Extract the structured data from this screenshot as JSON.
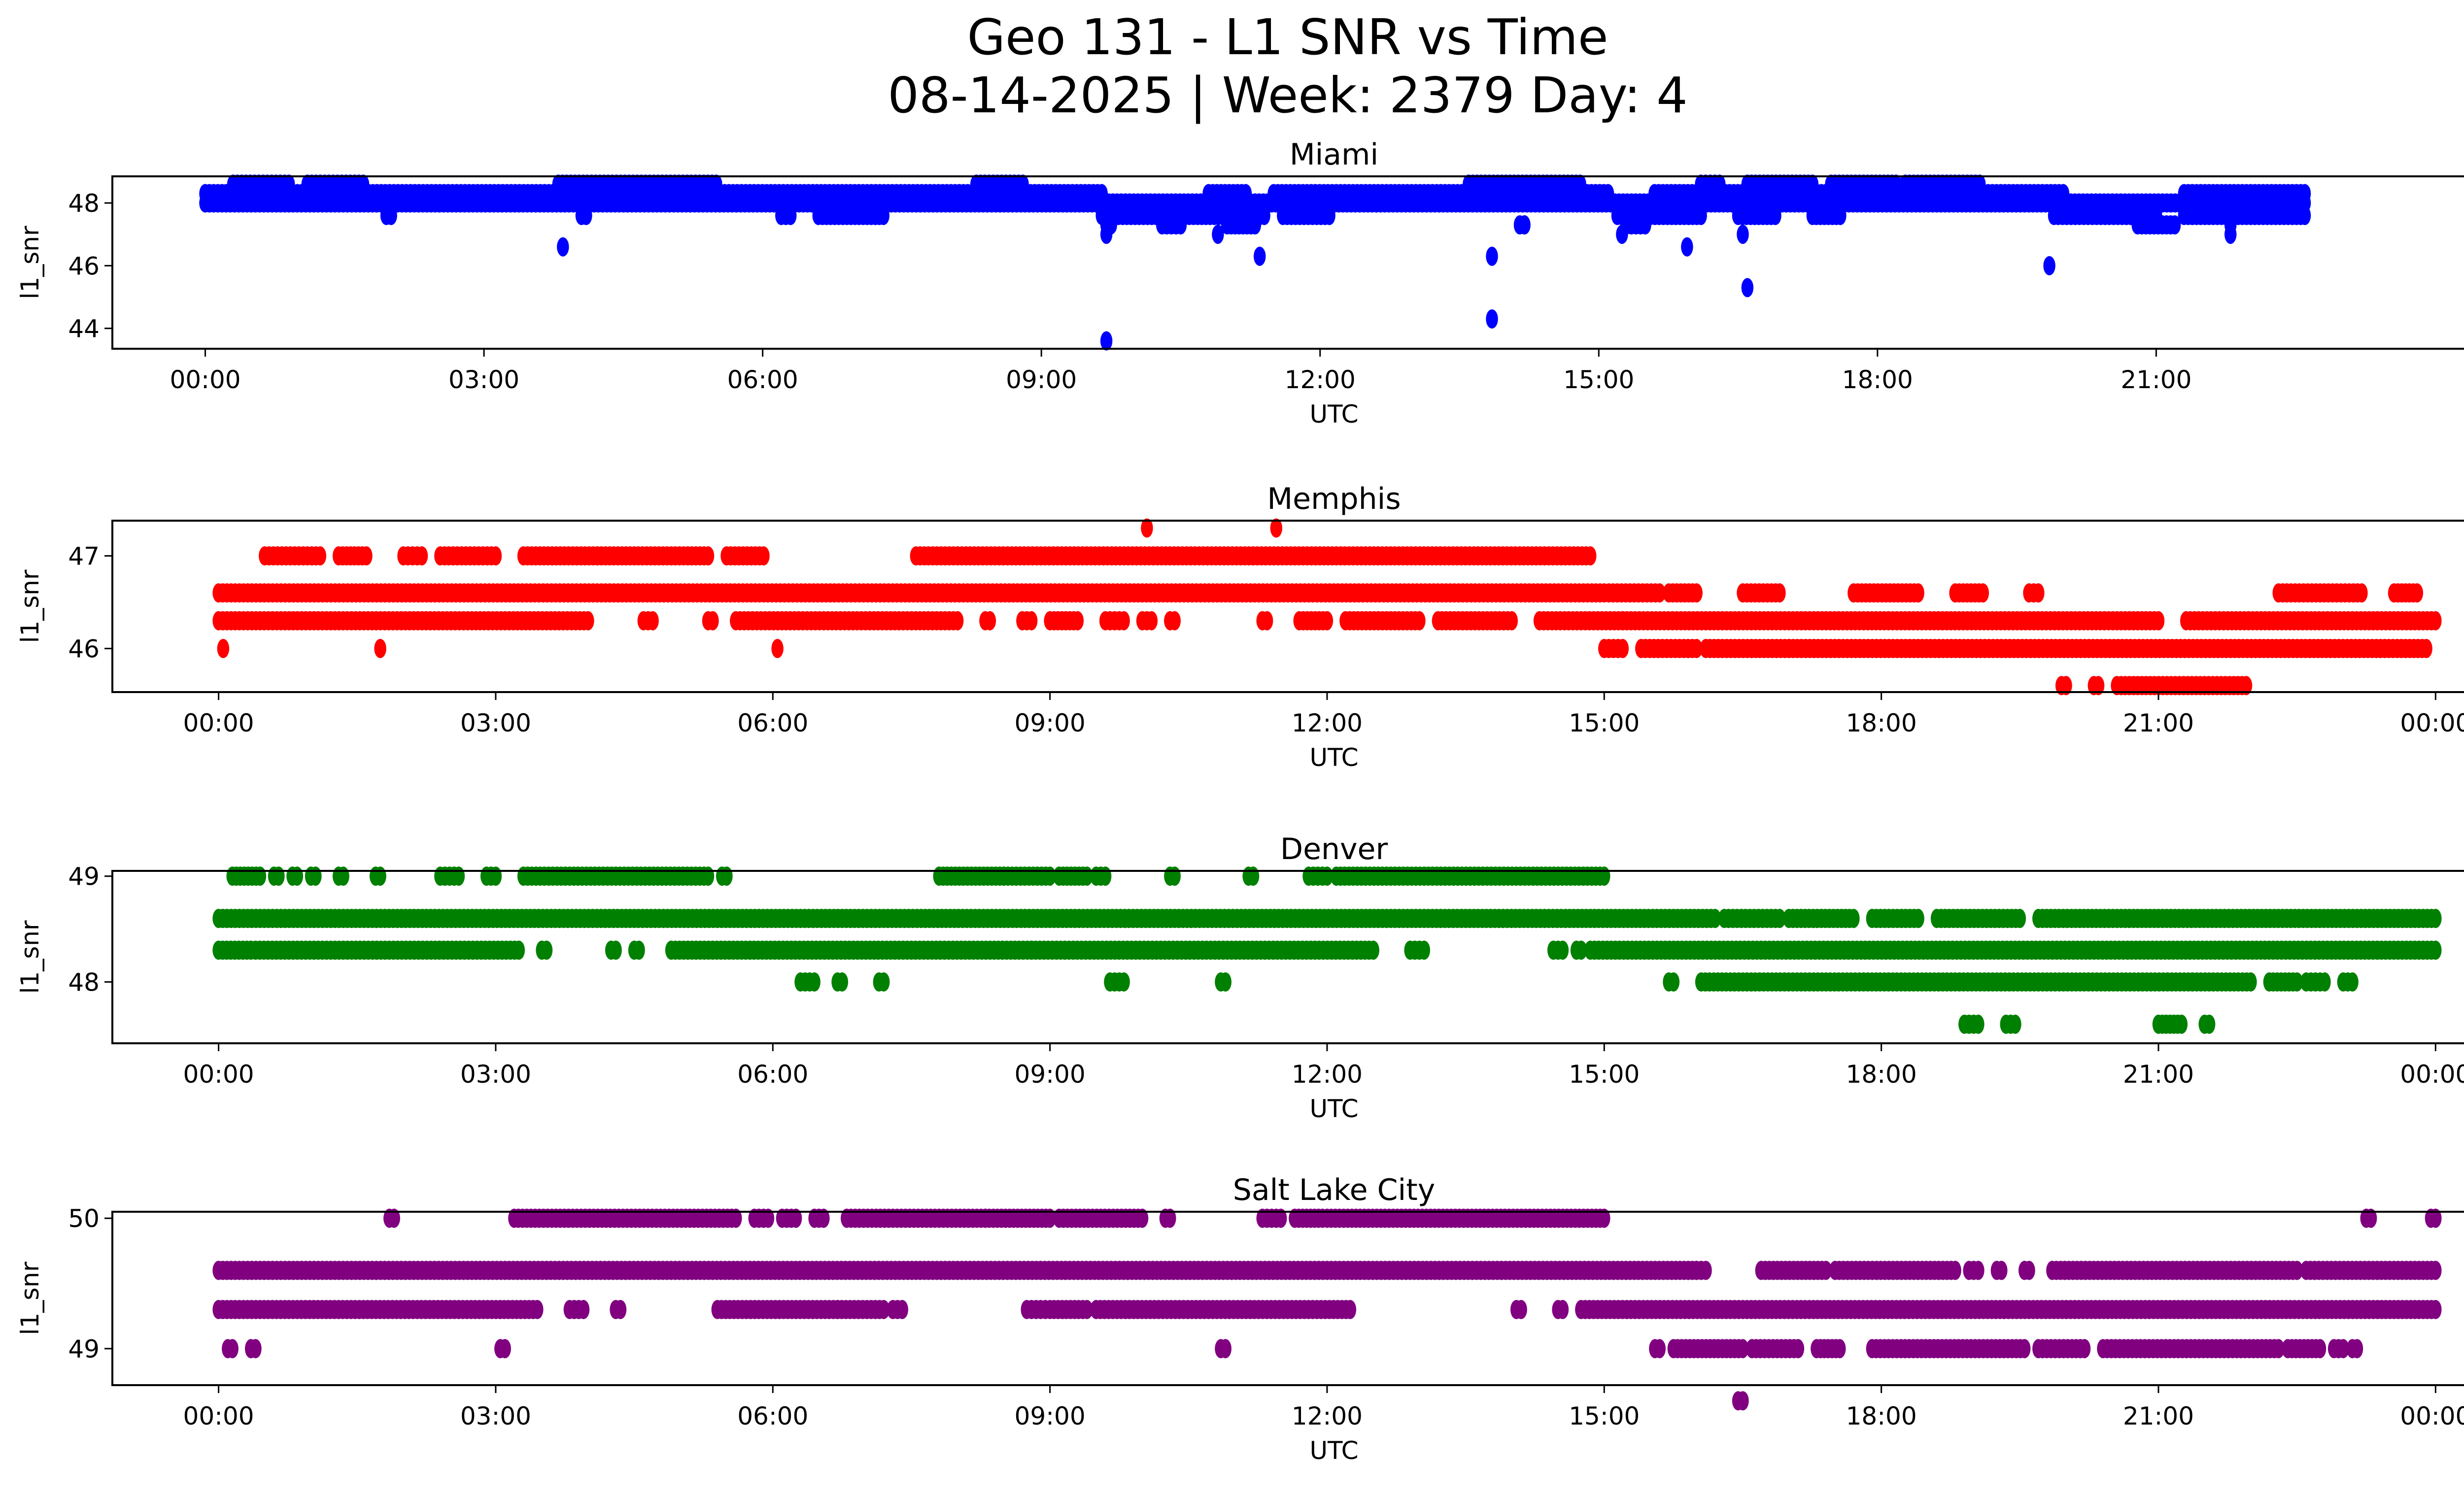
{
  "chart_data": {
    "type": "scatter",
    "title": "Geo 131 - L1 SNR vs Time",
    "subtitle": "08-14-2025 | Week: 2379 Day: 4",
    "panels": [
      {
        "name": "Miami",
        "color": "#0000ff",
        "xlabel": "UTC",
        "ylabel": "l1_snr",
        "xlim_hours": [
          -1.0,
          25.3
        ],
        "ylim": [
          43.35,
          48.85
        ],
        "yticks": [
          44,
          46,
          48
        ],
        "xticks_hours": [
          0,
          3,
          6,
          9,
          12,
          15,
          18,
          21
        ],
        "xtick_labels": [
          "00:00",
          "03:00",
          "06:00",
          "09:00",
          "12:00",
          "15:00",
          "18:00",
          "21:00"
        ],
        "runs": [
          {
            "y": 48.3,
            "segments": [
              [
                0.0,
                9.65
              ],
              [
                10.8,
                11.2
              ],
              [
                11.5,
                15.1
              ],
              [
                15.6,
                20.0
              ],
              [
                21.3,
                22.6
              ]
            ]
          },
          {
            "y": 48.0,
            "segments": [
              [
                0.0,
                22.6
              ]
            ]
          },
          {
            "y": 48.6,
            "segments": [
              [
                0.3,
                0.9
              ],
              [
                1.1,
                1.7
              ],
              [
                3.8,
                5.5
              ],
              [
                8.3,
                8.8
              ],
              [
                13.6,
                14.8
              ],
              [
                16.1,
                16.3
              ],
              [
                16.6,
                17.3
              ],
              [
                17.5,
                18.2
              ],
              [
                18.3,
                19.1
              ]
            ]
          },
          {
            "y": 47.6,
            "segments": [
              [
                1.95,
                2.0
              ],
              [
                4.05,
                4.1
              ],
              [
                6.2,
                6.3
              ],
              [
                6.6,
                7.3
              ],
              [
                9.65,
                11.4
              ],
              [
                11.6,
                12.1
              ],
              [
                15.2,
                16.1
              ],
              [
                16.5,
                16.9
              ],
              [
                17.3,
                17.6
              ],
              [
                19.9,
                21.0
              ],
              [
                21.3,
                22.6
              ]
            ]
          },
          {
            "y": 47.3,
            "segments": [
              [
                9.7,
                9.75
              ],
              [
                10.3,
                10.5
              ],
              [
                11.0,
                11.3
              ],
              [
                14.15,
                14.2
              ],
              [
                15.3,
                15.5
              ],
              [
                20.8,
                21.2
              ]
            ]
          }
        ],
        "points": [
          [
            3.85,
            46.6
          ],
          [
            9.7,
            43.6
          ],
          [
            9.7,
            47.0
          ],
          [
            11.35,
            46.3
          ],
          [
            10.9,
            47.0
          ],
          [
            13.85,
            46.3
          ],
          [
            13.85,
            44.3
          ],
          [
            15.95,
            46.6
          ],
          [
            16.55,
            47.0
          ],
          [
            16.6,
            45.3
          ],
          [
            15.25,
            47.0
          ],
          [
            19.85,
            46.0
          ],
          [
            21.8,
            47.0
          ],
          [
            21.8,
            47.3
          ],
          [
            14.2,
            47.3
          ]
        ]
      },
      {
        "name": "Memphis",
        "color": "#ff0000",
        "xlabel": "UTC",
        "ylabel": "l1_snr",
        "xlim_hours": [
          -1.15,
          25.3
        ],
        "ylim": [
          45.53,
          47.38
        ],
        "yticks": [
          46,
          47
        ],
        "xticks_hours": [
          0,
          3,
          6,
          9,
          12,
          15,
          18,
          21,
          24
        ],
        "xtick_labels": [
          "00:00",
          "03:00",
          "06:00",
          "09:00",
          "12:00",
          "15:00",
          "18:00",
          "21:00",
          "00:00"
        ],
        "runs": [
          {
            "y": 47.0,
            "segments": [
              [
                0.5,
                1.1
              ],
              [
                1.3,
                1.6
              ],
              [
                2.0,
                2.2
              ],
              [
                2.4,
                3.0
              ],
              [
                3.3,
                4.1
              ],
              [
                4.1,
                5.3
              ],
              [
                5.5,
                5.9
              ],
              [
                7.55,
                14.85
              ]
            ]
          },
          {
            "y": 46.6,
            "segments": [
              [
                0.0,
                15.0
              ],
              [
                15.05,
                15.6
              ],
              [
                15.7,
                16.0
              ],
              [
                16.5,
                16.9
              ],
              [
                17.7,
                18.4
              ],
              [
                18.8,
                19.1
              ],
              [
                19.6,
                19.7
              ],
              [
                22.3,
                23.2
              ],
              [
                23.55,
                23.8
              ]
            ]
          },
          {
            "y": 46.3,
            "segments": [
              [
                0.0,
                4.0
              ],
              [
                4.6,
                4.7
              ],
              [
                5.3,
                5.35
              ],
              [
                5.6,
                8.0
              ],
              [
                8.3,
                8.35
              ],
              [
                8.7,
                8.8
              ],
              [
                9.0,
                9.3
              ],
              [
                9.6,
                9.8
              ],
              [
                10.0,
                10.1
              ],
              [
                10.3,
                10.35
              ],
              [
                11.3,
                11.35
              ],
              [
                11.7,
                12.0
              ],
              [
                12.2,
                13.0
              ],
              [
                13.2,
                14.0
              ],
              [
                14.3,
                15.2
              ],
              [
                15.2,
                21.0
              ],
              [
                21.3,
                24.0
              ]
            ]
          },
          {
            "y": 46.0,
            "segments": [
              [
                15.0,
                15.2
              ],
              [
                15.4,
                16.0
              ],
              [
                16.1,
                17.0
              ],
              [
                17.0,
                23.9
              ]
            ]
          },
          {
            "y": 45.6,
            "segments": [
              [
                19.95,
                20.0
              ],
              [
                20.3,
                20.35
              ],
              [
                20.55,
                21.95
              ]
            ]
          }
        ],
        "points": [
          [
            0.05,
            46.0
          ],
          [
            1.75,
            46.0
          ],
          [
            6.05,
            46.0
          ],
          [
            10.05,
            47.3
          ],
          [
            11.45,
            47.3
          ]
        ]
      },
      {
        "name": "Denver",
        "color": "#008000",
        "xlabel": "UTC",
        "ylabel": "l1_snr",
        "xlim_hours": [
          -1.15,
          25.3
        ],
        "ylim": [
          47.42,
          49.05
        ],
        "yticks": [
          48,
          49
        ],
        "xticks_hours": [
          0,
          3,
          6,
          9,
          12,
          15,
          18,
          21,
          24
        ],
        "xtick_labels": [
          "00:00",
          "03:00",
          "06:00",
          "09:00",
          "12:00",
          "15:00",
          "18:00",
          "21:00",
          "00:00"
        ],
        "runs": [
          {
            "y": 49.0,
            "segments": [
              [
                0.15,
                0.45
              ],
              [
                0.6,
                0.65
              ],
              [
                0.8,
                0.85
              ],
              [
                1.0,
                1.05
              ],
              [
                1.3,
                1.35
              ],
              [
                1.7,
                1.75
              ],
              [
                2.4,
                2.6
              ],
              [
                2.9,
                3.0
              ],
              [
                3.3,
                5.3
              ],
              [
                5.45,
                5.5
              ],
              [
                7.8,
                8.5
              ],
              [
                8.5,
                9.0
              ],
              [
                9.1,
                9.4
              ],
              [
                9.5,
                9.6
              ],
              [
                10.3,
                10.35
              ],
              [
                11.15,
                11.2
              ],
              [
                11.8,
                12.0
              ],
              [
                12.1,
                15.0
              ]
            ]
          },
          {
            "y": 48.6,
            "segments": [
              [
                0.0,
                16.2
              ],
              [
                16.3,
                16.9
              ],
              [
                17.0,
                17.7
              ],
              [
                17.9,
                18.4
              ],
              [
                18.6,
                19.5
              ],
              [
                19.7,
                24.0
              ]
            ]
          },
          {
            "y": 48.3,
            "segments": [
              [
                0.0,
                0.35
              ],
              [
                0.4,
                3.25
              ],
              [
                3.5,
                3.55
              ],
              [
                4.25,
                4.3
              ],
              [
                4.5,
                4.55
              ],
              [
                4.9,
                8.8
              ],
              [
                8.8,
                12.5
              ],
              [
                12.9,
                13.05
              ],
              [
                14.45,
                14.55
              ],
              [
                14.7,
                14.75
              ],
              [
                14.85,
                24.0
              ]
            ]
          },
          {
            "y": 48.0,
            "segments": [
              [
                6.3,
                6.45
              ],
              [
                6.7,
                6.75
              ],
              [
                7.15,
                7.2
              ],
              [
                9.65,
                9.8
              ],
              [
                10.85,
                10.9
              ],
              [
                15.7,
                15.75
              ],
              [
                16.05,
                22.0
              ],
              [
                22.2,
                22.5
              ],
              [
                22.6,
                22.8
              ],
              [
                23.0,
                23.1
              ]
            ]
          },
          {
            "y": 47.6,
            "segments": [
              [
                18.9,
                19.05
              ],
              [
                19.35,
                19.45
              ],
              [
                21.0,
                21.25
              ],
              [
                21.5,
                21.55
              ]
            ]
          }
        ],
        "points": []
      },
      {
        "name": "Salt Lake City",
        "color": "#800080",
        "xlabel": "UTC",
        "ylabel": "l1_snr",
        "xlim_hours": [
          -1.15,
          25.3
        ],
        "ylim": [
          48.72,
          50.05
        ],
        "yticks": [
          49,
          50
        ],
        "xticks_hours": [
          0,
          3,
          6,
          9,
          12,
          15,
          18,
          21,
          24
        ],
        "xtick_labels": [
          "00:00",
          "03:00",
          "06:00",
          "09:00",
          "12:00",
          "15:00",
          "18:00",
          "21:00",
          "00:00"
        ],
        "runs": [
          {
            "y": 50.0,
            "segments": [
              [
                1.85,
                1.9
              ],
              [
                3.2,
                5.6
              ],
              [
                5.8,
                5.95
              ],
              [
                6.1,
                6.25
              ],
              [
                6.45,
                6.55
              ],
              [
                6.8,
                8.3
              ],
              [
                8.3,
                9.0
              ],
              [
                9.1,
                10.0
              ],
              [
                10.25,
                10.3
              ],
              [
                11.3,
                11.5
              ],
              [
                11.65,
                11.95
              ],
              [
                12.0,
                15.0
              ],
              [
                23.25,
                23.3
              ],
              [
                23.95,
                24.0
              ]
            ]
          },
          {
            "y": 49.6,
            "segments": [
              [
                0.0,
                16.0
              ],
              [
                16.0,
                16.1
              ],
              [
                16.7,
                17.4
              ],
              [
                17.5,
                18.8
              ],
              [
                18.95,
                19.05
              ],
              [
                19.25,
                19.3
              ],
              [
                19.55,
                19.6
              ],
              [
                19.85,
                22.5
              ],
              [
                22.6,
                24.0
              ]
            ]
          },
          {
            "y": 49.3,
            "segments": [
              [
                0.0,
                3.45
              ],
              [
                3.8,
                3.95
              ],
              [
                4.3,
                4.35
              ],
              [
                5.4,
                6.7
              ],
              [
                6.7,
                7.2
              ],
              [
                7.3,
                7.4
              ],
              [
                8.75,
                8.95
              ],
              [
                9.0,
                9.4
              ],
              [
                9.5,
                12.25
              ],
              [
                14.05,
                14.1
              ],
              [
                14.5,
                14.55
              ],
              [
                14.75,
                24.0
              ]
            ]
          },
          {
            "y": 49.0,
            "segments": [
              [
                0.1,
                0.15
              ],
              [
                0.35,
                0.4
              ],
              [
                3.05,
                3.1
              ],
              [
                10.85,
                10.9
              ],
              [
                15.55,
                15.6
              ],
              [
                15.75,
                16.5
              ],
              [
                16.6,
                17.1
              ],
              [
                17.3,
                17.55
              ],
              [
                17.9,
                19.55
              ],
              [
                19.7,
                20.2
              ],
              [
                20.4,
                22.3
              ],
              [
                22.4,
                22.75
              ],
              [
                22.9,
                23.0
              ],
              [
                23.1,
                23.15
              ]
            ]
          },
          {
            "y": 48.6,
            "segments": [
              [
                16.45,
                16.5
              ]
            ]
          }
        ],
        "points": []
      }
    ]
  }
}
